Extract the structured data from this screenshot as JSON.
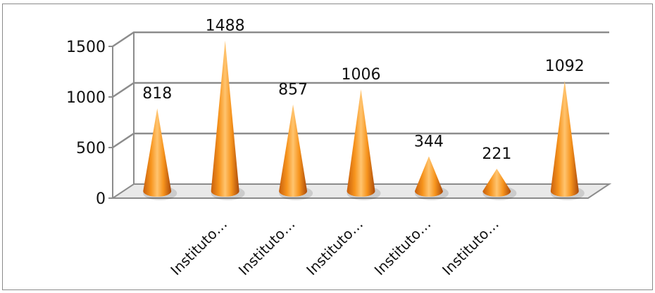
{
  "chart_data": {
    "type": "bar",
    "shape": "cone-3d",
    "categories": [
      "",
      "Instituto…",
      "Instituto…",
      "Instituto…",
      "Instituto…",
      "Instituto…",
      ""
    ],
    "values": [
      818,
      1488,
      857,
      1006,
      344,
      221,
      1092
    ],
    "data_labels": [
      "818",
      "1488",
      "857",
      "1006",
      "344",
      "221",
      "1092"
    ],
    "y_ticks": [
      "0",
      "500",
      "1000",
      "1500"
    ],
    "ylim": [
      0,
      1500
    ],
    "grid": true,
    "legend": "none",
    "colors": {
      "cone_light": "#ffd08a",
      "cone_mid": "#f7941d",
      "cone_dark": "#b8520a",
      "grid": "#8c8c8c",
      "floor": "#e9e9e9"
    }
  }
}
